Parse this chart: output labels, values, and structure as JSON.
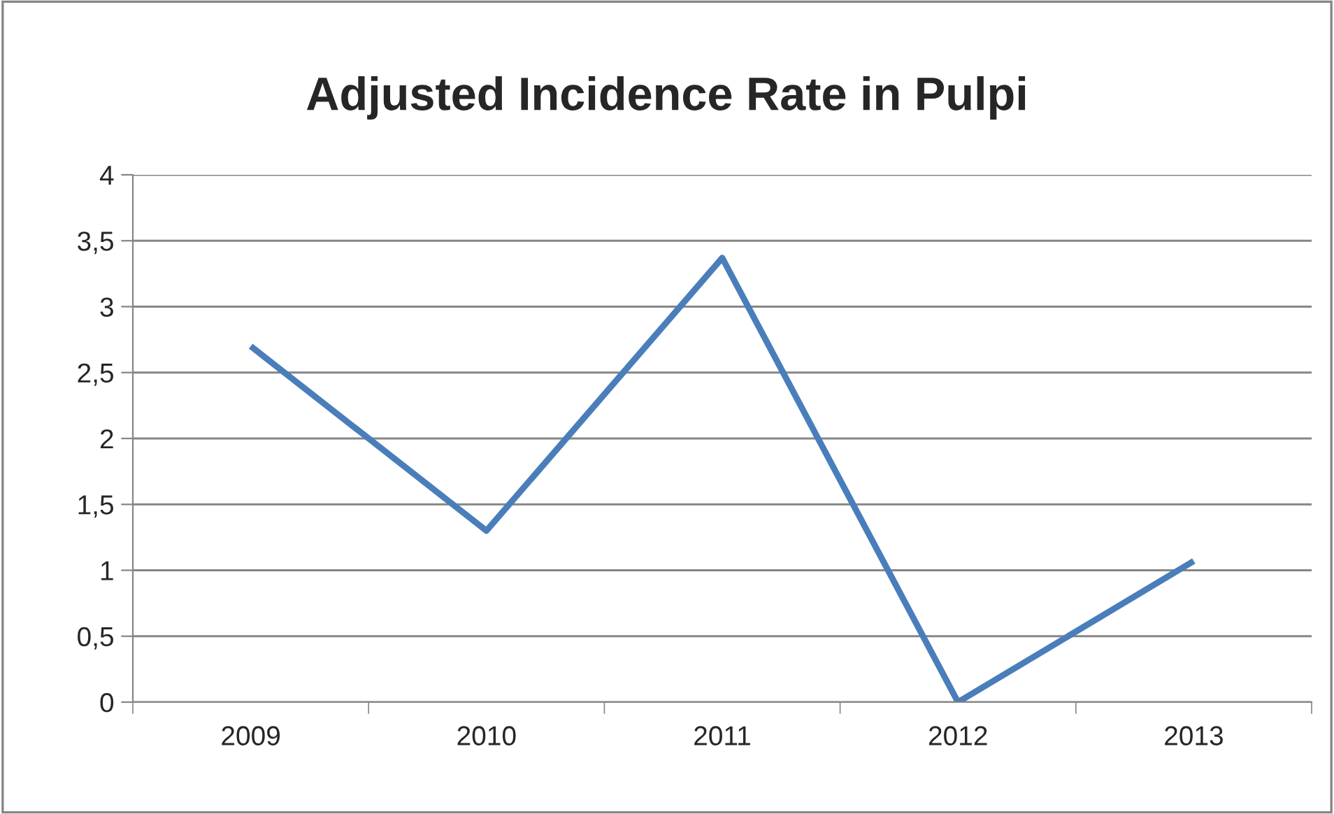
{
  "chart_data": {
    "type": "line",
    "title": "Adjusted Incidence Rate in Pulpi",
    "categories": [
      "2009",
      "2010",
      "2011",
      "2012",
      "2013"
    ],
    "series": [
      {
        "color": "#4a7ebb",
        "values": [
          2.7,
          1.3,
          3.37,
          0,
          1.07
        ]
      }
    ],
    "ylim": [
      0,
      4
    ],
    "yticks": [
      0,
      {
        "value": 0.5,
        "label": "0,5"
      },
      1,
      {
        "value": 1.5,
        "label": "1,5"
      },
      2,
      {
        "value": 2.5,
        "label": "2,5"
      },
      3,
      {
        "value": 3.5,
        "label": "3,5"
      },
      4
    ],
    "grid": "y",
    "legend": false,
    "marker": "none",
    "line_style": "solid"
  }
}
